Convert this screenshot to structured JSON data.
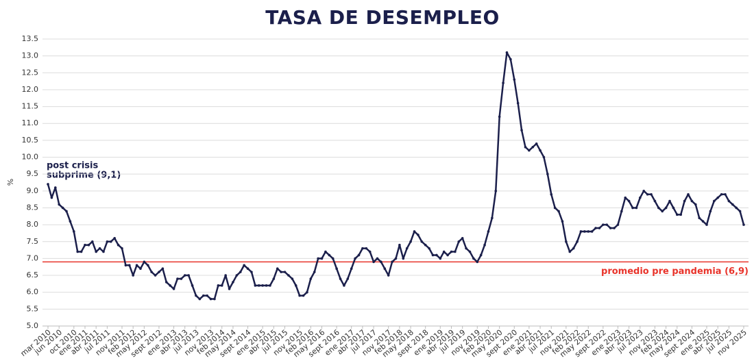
{
  "chart_data": {
    "type": "line",
    "title": "TASA DE DESEMPLEO",
    "y_label": "%",
    "categories": [
      "mar 2010",
      null,
      null,
      "jun 2010",
      null,
      null,
      null,
      "oct 2010",
      null,
      null,
      "ene 2011",
      null,
      null,
      "abr 2011",
      null,
      null,
      "jul 2011",
      null,
      null,
      null,
      "nov 2011",
      null,
      null,
      "feb 2012",
      null,
      null,
      "may 2012",
      null,
      null,
      null,
      "sept 2012",
      null,
      null,
      null,
      "ene 2013",
      null,
      null,
      "abr 2013",
      null,
      null,
      "jul 2013",
      null,
      null,
      null,
      "nov 2013",
      null,
      null,
      "feb 2014",
      null,
      null,
      "may 2014",
      null,
      null,
      null,
      "sept 2014",
      null,
      null,
      null,
      "ene 2015",
      null,
      null,
      "abr 2015",
      null,
      null,
      "jul 2015",
      null,
      null,
      null,
      "nov 2015",
      null,
      null,
      "feb 2016",
      null,
      null,
      "may 2016",
      null,
      null,
      null,
      "sept 2016",
      null,
      null,
      null,
      "ene 2017",
      null,
      null,
      "abr 2017",
      null,
      null,
      "jul 2017",
      null,
      null,
      null,
      "nov 2017",
      null,
      null,
      "feb 2018",
      null,
      null,
      "may 2018",
      null,
      null,
      null,
      "sept 2018",
      null,
      null,
      null,
      "ene 2019",
      null,
      null,
      "abr 2019",
      null,
      null,
      "jul 2019",
      null,
      null,
      null,
      "nov 2019",
      null,
      null,
      "feb 2020",
      null,
      null,
      "may 2020",
      null,
      null,
      null,
      "sept 2020",
      null,
      null,
      null,
      "ene 2021",
      null,
      null,
      "abr 2021",
      null,
      null,
      "jul 2021",
      null,
      null,
      null,
      "nov 2021",
      null,
      null,
      "feb 2022",
      null,
      null,
      "may 2022",
      null,
      null,
      null,
      "sept 2022",
      null,
      null,
      null,
      "ene 2023",
      null,
      null,
      "abr 2023",
      null,
      null,
      "jul 2023",
      null,
      null,
      null,
      "nov 2023",
      null,
      null,
      "feb 2024",
      null,
      null,
      "may 2024",
      null,
      null,
      null,
      "sept 2024",
      null,
      null,
      null,
      "ene 2025",
      null,
      null,
      "abr 2025",
      null,
      null,
      "jul 2025",
      null,
      null,
      null,
      "nov 2025"
    ],
    "values": [
      9.2,
      8.8,
      9.1,
      8.6,
      8.5,
      8.4,
      8.1,
      7.8,
      7.2,
      7.2,
      7.4,
      7.4,
      7.5,
      7.2,
      7.3,
      7.2,
      7.5,
      7.5,
      7.6,
      7.4,
      7.3,
      6.8,
      6.8,
      6.5,
      6.8,
      6.7,
      6.9,
      6.8,
      6.6,
      6.5,
      6.6,
      6.7,
      6.3,
      6.2,
      6.1,
      6.4,
      6.4,
      6.5,
      6.5,
      6.2,
      5.9,
      5.8,
      5.9,
      5.9,
      5.8,
      5.8,
      6.2,
      6.2,
      6.5,
      6.1,
      6.3,
      6.5,
      6.6,
      6.8,
      6.7,
      6.6,
      6.2,
      6.2,
      6.2,
      6.2,
      6.2,
      6.4,
      6.7,
      6.6,
      6.6,
      6.5,
      6.4,
      6.2,
      5.9,
      5.9,
      6.0,
      6.4,
      6.6,
      7.0,
      7.0,
      7.2,
      7.1,
      7.0,
      6.7,
      6.4,
      6.2,
      6.4,
      6.7,
      7.0,
      7.1,
      7.3,
      7.3,
      7.2,
      6.9,
      7.0,
      6.9,
      6.7,
      6.5,
      6.9,
      7.0,
      7.4,
      7.0,
      7.3,
      7.5,
      7.8,
      7.7,
      7.5,
      7.4,
      7.3,
      7.1,
      7.1,
      7.0,
      7.2,
      7.1,
      7.2,
      7.2,
      7.5,
      7.6,
      7.3,
      7.2,
      7.0,
      6.9,
      7.1,
      7.4,
      7.8,
      8.2,
      9.0,
      11.2,
      12.2,
      13.1,
      12.9,
      12.3,
      11.6,
      10.8,
      10.3,
      10.2,
      10.3,
      10.4,
      10.2,
      10.0,
      9.5,
      8.9,
      8.5,
      8.4,
      8.1,
      7.5,
      7.2,
      7.3,
      7.5,
      7.8,
      7.8,
      7.8,
      7.8,
      7.9,
      7.9,
      8.0,
      8.0,
      7.9,
      7.9,
      8.0,
      8.4,
      8.8,
      8.7,
      8.5,
      8.5,
      8.8,
      9.0,
      8.9,
      8.9,
      8.7,
      8.5,
      8.4,
      8.5,
      8.7,
      8.5,
      8.3,
      8.3,
      8.7,
      8.9,
      8.7,
      8.6,
      8.2,
      8.1,
      8.0,
      8.4,
      8.7,
      8.8,
      8.9,
      8.9,
      8.7,
      8.6,
      8.5,
      8.4,
      8.0
    ],
    "color": "#1b1f4b",
    "ylim": [
      5,
      13.5
    ],
    "yticks": [
      {
        "value": 5,
        "label": "5.0"
      },
      5.5,
      {
        "value": 6,
        "label": "6.0"
      },
      6.5,
      {
        "value": 7,
        "label": "7.0"
      },
      7.5,
      {
        "value": 8,
        "label": "8.0"
      },
      8.5,
      {
        "value": 9,
        "label": "9.0"
      },
      9.5,
      {
        "value": 10,
        "label": "10.0"
      },
      10.5,
      {
        "value": 11,
        "label": "11.0"
      },
      11.5,
      {
        "value": 12,
        "label": "12.0"
      },
      12.5,
      {
        "value": 13,
        "label": "13.0"
      },
      13.5
    ],
    "grid": true,
    "reference_line": {
      "value": 6.9,
      "label": "promedio pre pandemia (6,9)",
      "color": "#e8332a"
    },
    "annotation": [
      "post crisis",
      "subprime (9,1)"
    ]
  }
}
